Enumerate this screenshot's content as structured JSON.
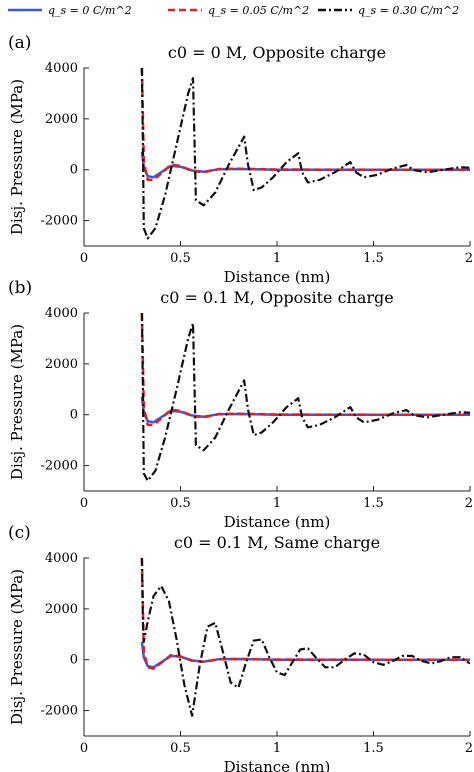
{
  "legend": [
    {
      "label": "q_s = 0 C/m^2",
      "color": "#3b55e6",
      "dash": "solid"
    },
    {
      "label": "q_s = 0.05 C/m^2",
      "color": "#e02020",
      "dash": "dashed"
    },
    {
      "label": "q_s = 0.30 C/m^2",
      "color": "#111111",
      "dash": "dashdot"
    }
  ],
  "chart_data": [
    {
      "type": "line",
      "panel_label": "(a)",
      "title": "c0 = 0 M, Opposite charge",
      "xlabel": "Distance (nm)",
      "ylabel": "Disj. Pressure (MPa)",
      "xlim": [
        0,
        2
      ],
      "ylim": [
        -3000,
        4000
      ],
      "xticks": [
        0,
        0.5,
        1,
        1.5,
        2
      ],
      "xtick_labels": [
        "0",
        "0.5",
        "1",
        "1.5",
        "2"
      ],
      "yticks": [
        -2000,
        0,
        2000,
        4000
      ],
      "ytick_labels": [
        "-2000",
        "0",
        "2000",
        "4000"
      ],
      "series": [
        {
          "name": "q_s = 0 C/m^2",
          "x": [
            0.3,
            0.31,
            0.33,
            0.36,
            0.4,
            0.45,
            0.5,
            0.56,
            0.62,
            0.7,
            0.8,
            1.0,
            1.5,
            2.0
          ],
          "y": [
            700,
            100,
            -250,
            -300,
            -100,
            150,
            120,
            -30,
            -80,
            20,
            30,
            0,
            0,
            0
          ]
        },
        {
          "name": "q_s = 0.05 C/m^2",
          "x": [
            0.3,
            0.31,
            0.33,
            0.36,
            0.4,
            0.45,
            0.5,
            0.56,
            0.62,
            0.7,
            0.8,
            1.0,
            1.5,
            2.0
          ],
          "y": [
            4000,
            300,
            -400,
            -400,
            -150,
            200,
            150,
            -50,
            -100,
            30,
            40,
            10,
            0,
            0
          ]
        },
        {
          "name": "q_s = 0.30 C/m^2",
          "x": [
            0.3,
            0.305,
            0.31,
            0.33,
            0.37,
            0.42,
            0.48,
            0.54,
            0.565,
            0.58,
            0.62,
            0.68,
            0.75,
            0.83,
            0.85,
            0.88,
            0.92,
            0.98,
            1.05,
            1.11,
            1.13,
            1.16,
            1.22,
            1.3,
            1.38,
            1.41,
            1.45,
            1.52,
            1.6,
            1.67,
            1.71,
            1.78,
            1.88,
            1.95,
            2.0
          ],
          "y": [
            4000,
            1000,
            -2300,
            -2700,
            -2300,
            -1000,
            1000,
            3000,
            3600,
            -1200,
            -1400,
            -900,
            200,
            1300,
            200,
            -800,
            -700,
            -300,
            300,
            650,
            -100,
            -500,
            -400,
            -100,
            300,
            -100,
            -300,
            -200,
            50,
            180,
            -20,
            -100,
            20,
            100,
            80
          ]
        }
      ]
    },
    {
      "type": "line",
      "panel_label": "(b)",
      "title": "c0 = 0.1 M, Opposite charge",
      "xlabel": "Distance (nm)",
      "ylabel": "Disj. Pressure (MPa)",
      "xlim": [
        0,
        2
      ],
      "ylim": [
        -3000,
        4000
      ],
      "xticks": [
        0,
        0.5,
        1,
        1.5,
        2
      ],
      "xtick_labels": [
        "0",
        "0.5",
        "1",
        "1.5",
        "2"
      ],
      "yticks": [
        -2000,
        0,
        2000,
        4000
      ],
      "ytick_labels": [
        "-2000",
        "0",
        "2000",
        "4000"
      ],
      "series": [
        {
          "name": "q_s = 0 C/m^2",
          "x": [
            0.3,
            0.31,
            0.33,
            0.36,
            0.4,
            0.45,
            0.5,
            0.56,
            0.62,
            0.7,
            0.8,
            1.0,
            1.5,
            2.0
          ],
          "y": [
            700,
            100,
            -250,
            -300,
            -100,
            150,
            120,
            -30,
            -80,
            20,
            30,
            0,
            0,
            0
          ]
        },
        {
          "name": "q_s = 0.05 C/m^2",
          "x": [
            0.3,
            0.31,
            0.33,
            0.36,
            0.4,
            0.45,
            0.5,
            0.56,
            0.62,
            0.7,
            0.8,
            1.0,
            1.5,
            2.0
          ],
          "y": [
            4000,
            300,
            -400,
            -400,
            -150,
            200,
            150,
            -50,
            -100,
            30,
            40,
            10,
            0,
            0
          ]
        },
        {
          "name": "q_s = 0.30 C/m^2",
          "x": [
            0.3,
            0.305,
            0.31,
            0.33,
            0.37,
            0.42,
            0.48,
            0.54,
            0.565,
            0.58,
            0.62,
            0.68,
            0.75,
            0.83,
            0.85,
            0.88,
            0.92,
            0.98,
            1.05,
            1.11,
            1.13,
            1.16,
            1.22,
            1.3,
            1.38,
            1.41,
            1.45,
            1.52,
            1.6,
            1.67,
            1.71,
            1.78,
            1.88,
            1.95,
            2.0
          ],
          "y": [
            4000,
            1000,
            -2300,
            -2600,
            -2200,
            -900,
            1000,
            3000,
            3600,
            -1200,
            -1400,
            -900,
            200,
            1350,
            200,
            -800,
            -700,
            -300,
            300,
            650,
            -100,
            -500,
            -400,
            -100,
            300,
            -100,
            -300,
            -200,
            50,
            180,
            -20,
            -100,
            20,
            100,
            80
          ]
        }
      ]
    },
    {
      "type": "line",
      "panel_label": "(c)",
      "title": "c0 = 0.1 M, Same charge",
      "xlabel": "Distance (nm)",
      "ylabel": "Disj. Pressure (MPa)",
      "xlim": [
        0,
        2
      ],
      "ylim": [
        -3000,
        4000
      ],
      "xticks": [
        0,
        0.5,
        1,
        1.5,
        2
      ],
      "xtick_labels": [
        "0",
        "0.5",
        "1",
        "1.5",
        "2"
      ],
      "yticks": [
        -2000,
        0,
        2000,
        4000
      ],
      "ytick_labels": [
        "-2000",
        "0",
        "2000",
        "4000"
      ],
      "series": [
        {
          "name": "q_s = 0 C/m^2",
          "x": [
            0.3,
            0.31,
            0.33,
            0.36,
            0.4,
            0.45,
            0.5,
            0.56,
            0.62,
            0.7,
            0.8,
            1.0,
            1.5,
            2.0
          ],
          "y": [
            700,
            100,
            -250,
            -300,
            -100,
            150,
            120,
            -30,
            -80,
            20,
            30,
            0,
            0,
            0
          ]
        },
        {
          "name": "q_s = 0.05 C/m^2",
          "x": [
            0.3,
            0.31,
            0.33,
            0.36,
            0.4,
            0.45,
            0.5,
            0.56,
            0.62,
            0.7,
            0.8,
            1.0,
            1.5,
            2.0
          ],
          "y": [
            4000,
            300,
            -300,
            -350,
            -120,
            180,
            130,
            -40,
            -80,
            20,
            30,
            10,
            0,
            0
          ]
        },
        {
          "name": "q_s = 0.30 C/m^2",
          "x": [
            0.3,
            0.305,
            0.31,
            0.33,
            0.36,
            0.4,
            0.44,
            0.48,
            0.52,
            0.56,
            0.6,
            0.64,
            0.68,
            0.72,
            0.76,
            0.8,
            0.84,
            0.88,
            0.92,
            0.96,
            1.0,
            1.04,
            1.08,
            1.12,
            1.16,
            1.2,
            1.25,
            1.3,
            1.35,
            1.4,
            1.45,
            1.5,
            1.55,
            1.6,
            1.65,
            1.7,
            1.75,
            1.8,
            1.85,
            1.9,
            1.95,
            2.0
          ],
          "y": [
            4000,
            1500,
            700,
            1500,
            2500,
            2900,
            2300,
            800,
            -1000,
            -2200,
            -200,
            1300,
            1450,
            300,
            -900,
            -1100,
            -100,
            750,
            800,
            100,
            -500,
            -600,
            -100,
            400,
            450,
            100,
            -300,
            -300,
            0,
            250,
            200,
            -100,
            -200,
            -50,
            150,
            150,
            -50,
            -150,
            -50,
            100,
            100,
            -150
          ]
        }
      ]
    }
  ]
}
